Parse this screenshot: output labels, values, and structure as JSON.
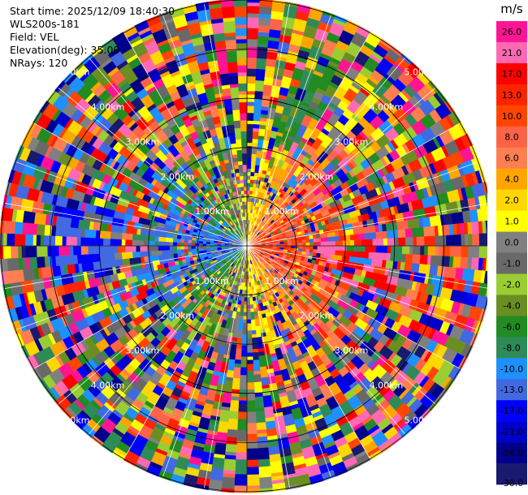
{
  "info": {
    "start_time": "Start time: 2025/12/09 18:40:30",
    "instrument": "WLS200s-181",
    "field": "Field: VEL",
    "elevation": "Elevation(deg): 35.00",
    "nrays": "NRays: 120"
  },
  "chart_data": {
    "type": "heatmap",
    "projection": "polar PPI",
    "field": "VEL",
    "units": "m/s",
    "n_rays": 120,
    "elevation_deg": 35.0,
    "max_range_km": 5.0,
    "range_ring_labels": [
      "1.00km",
      "2.00km",
      "3.00km",
      "4.00km",
      "5.00km"
    ],
    "range_ring_km": [
      1,
      2,
      3,
      4,
      5
    ],
    "label_directions": [
      "NW",
      "NE",
      "SW",
      "SE"
    ],
    "colorbar": {
      "title": "m/s",
      "labels": [
        "26.0",
        "21.0",
        "17.0",
        "13.0",
        "10.0",
        "8.0",
        "6.0",
        "4.0",
        "2.0",
        "1.0",
        "0.0",
        "-1.0",
        "-2.0",
        "-4.0",
        "-6.0",
        "-8.0",
        "-10.0",
        "-13.0",
        "-17.0",
        "-21.0",
        "-26.0",
        "-30.0"
      ],
      "colors": [
        "#ff1493",
        "#ff69b4",
        "#ff0000",
        "#ff2400",
        "#ff4500",
        "#ff6347",
        "#ff7f50",
        "#ffa500",
        "#ffd700",
        "#ffff00",
        "#808080",
        "#696969",
        "#9acd32",
        "#6b8e23",
        "#228b22",
        "#2e8b57",
        "#1e90ff",
        "#4169e1",
        "#0000ff",
        "#0000cd",
        "#00008b",
        "#191970"
      ]
    }
  }
}
